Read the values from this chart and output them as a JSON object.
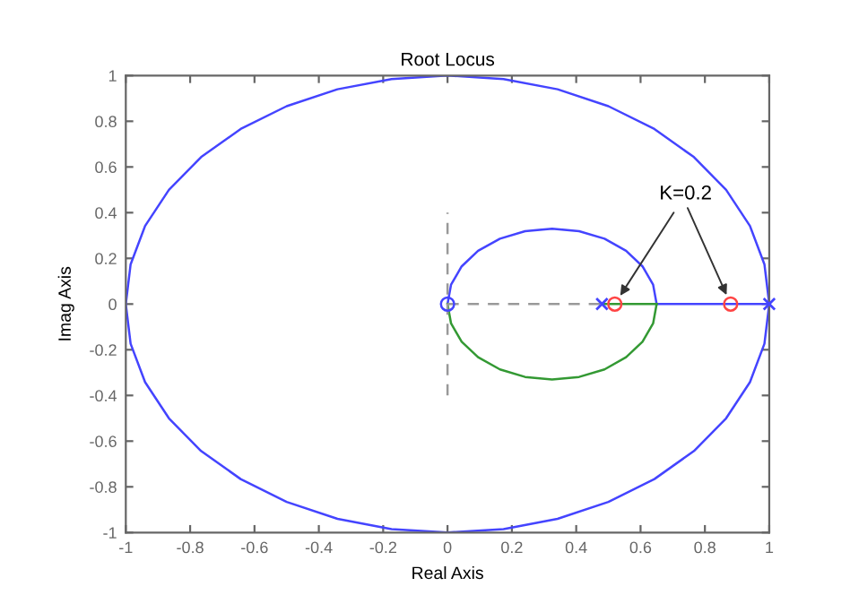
{
  "chart_data": {
    "type": "line",
    "title": "Root Locus",
    "xlabel": "Real Axis",
    "ylabel": "Imag Axis",
    "xlim": [
      -1,
      1
    ],
    "ylim": [
      -1,
      1
    ],
    "xticks": [
      -1,
      -0.8,
      -0.6,
      -0.4,
      -0.2,
      0,
      0.2,
      0.4,
      0.6,
      0.8,
      1
    ],
    "yticks": [
      -1,
      -0.8,
      -0.6,
      -0.4,
      -0.2,
      0,
      0.2,
      0.4,
      0.6,
      0.8,
      1
    ],
    "grid": false,
    "legend": false,
    "annotations": [
      {
        "text": "K=0.2",
        "x": 0.52,
        "y": 0
      }
    ],
    "series": [
      {
        "color": "#4444ff",
        "marker": "none",
        "line_style": "solid",
        "x": [
          1,
          0.985,
          0.94,
          0.866,
          0.766,
          0.643,
          0.5,
          0.342,
          0.174,
          0,
          -0.174,
          -0.342,
          -0.5,
          -0.643,
          -0.766,
          -0.866,
          -0.94,
          -0.985,
          -1,
          -0.985,
          -0.94,
          -0.866,
          -0.766,
          -0.643,
          -0.5,
          -0.342,
          -0.174,
          0,
          0.174,
          0.342,
          0.5,
          0.643,
          0.766,
          0.866,
          0.94,
          0.985,
          1,
          0.65,
          0.639,
          0.606,
          0.555,
          0.488,
          0.409,
          0.325,
          0.241,
          0.163,
          0.095,
          0.044,
          0.011,
          0
        ],
        "values": [
          0,
          0.174,
          0.342,
          0.5,
          0.643,
          0.766,
          0.866,
          0.94,
          0.985,
          1,
          0.985,
          0.94,
          0.866,
          0.766,
          0.643,
          0.5,
          0.342,
          0.174,
          0,
          -0.174,
          -0.342,
          -0.5,
          -0.643,
          -0.766,
          -0.866,
          -0.94,
          -0.985,
          -1,
          -0.985,
          -0.94,
          -0.866,
          -0.766,
          -0.643,
          -0.5,
          -0.342,
          -0.174,
          0,
          0,
          0.085,
          0.165,
          0.233,
          0.286,
          0.319,
          0.33,
          0.319,
          0.286,
          0.233,
          0.165,
          0.085,
          0
        ]
      },
      {
        "color": "#339933",
        "marker": "none",
        "line_style": "solid",
        "x": [
          0.65,
          0.639,
          0.606,
          0.555,
          0.488,
          0.409,
          0.325,
          0.241,
          0.163,
          0.095,
          0.044,
          0.011,
          0
        ],
        "values": [
          0,
          -0.085,
          -0.165,
          -0.233,
          -0.286,
          -0.319,
          -0.33,
          -0.319,
          -0.286,
          -0.233,
          -0.165,
          -0.085,
          0
        ]
      },
      {
        "color": "#339933",
        "marker": "none",
        "line_style": "solid",
        "x": [
          0.48,
          0.65
        ],
        "values": [
          0,
          0
        ]
      },
      {
        "color": "#999999",
        "marker": "none",
        "line_style": "dashed",
        "x": [
          0,
          0.48
        ],
        "values": [
          0,
          0
        ]
      },
      {
        "color": "#999999",
        "marker": "none",
        "line_style": "dashed",
        "x": [
          0,
          0
        ],
        "values": [
          -0.4,
          0.4
        ]
      },
      {
        "type": "scatter",
        "color": "#4444ff",
        "marker": "cross",
        "x": [
          0.48,
          1
        ],
        "values": [
          0,
          0
        ]
      },
      {
        "type": "scatter",
        "color": "#4444ff",
        "marker": "circle",
        "x": [
          0
        ],
        "values": [
          0
        ]
      },
      {
        "type": "scatter",
        "color": "#ff4444",
        "marker": "circle",
        "x": [
          0.52,
          0.88
        ],
        "values": [
          0,
          0
        ]
      }
    ]
  }
}
